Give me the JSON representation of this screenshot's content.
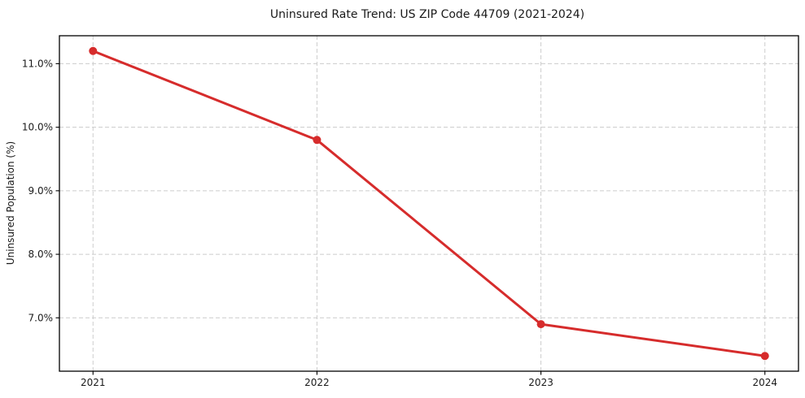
{
  "chart_data": {
    "type": "line",
    "title": "Uninsured Rate Trend: US ZIP Code 44709 (2021-2024)",
    "xlabel": "",
    "ylabel": "Uninsured Population (%)",
    "x": [
      2021,
      2022,
      2023,
      2024
    ],
    "categories": [
      "2021",
      "2022",
      "2023",
      "2024"
    ],
    "series": [
      {
        "name": "Uninsured Rate",
        "values": [
          11.2,
          9.8,
          6.9,
          6.4
        ]
      }
    ],
    "xlim": [
      2020.85,
      2024.15
    ],
    "ylim": [
      6.16,
      11.44
    ],
    "xticks": {
      "values": [
        2021,
        2022,
        2023,
        2024
      ],
      "labels": [
        "2021",
        "2022",
        "2023",
        "2024"
      ]
    },
    "yticks": {
      "values": [
        7,
        8,
        9,
        10,
        11
      ],
      "labels": [
        "7.0%",
        "8.0%",
        "9.0%",
        "10.0%",
        "11.0%"
      ]
    },
    "grid": true,
    "legend": "none",
    "colors": {
      "line": "#d62c2c",
      "marker": "#d62c2c",
      "grid": "#cccccc",
      "frame": "#000000",
      "text": "#1a1a1a",
      "background": "#ffffff"
    }
  }
}
